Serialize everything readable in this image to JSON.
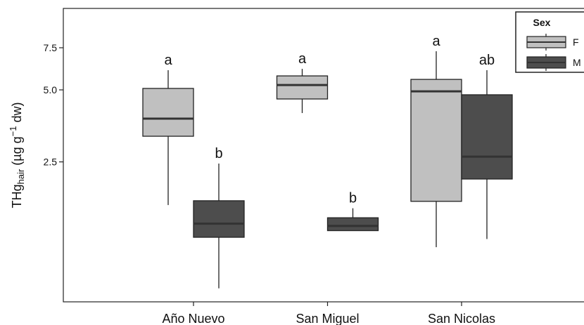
{
  "chart_data": {
    "type": "box",
    "ylabel": {
      "main": "THg",
      "sub": "hair",
      "rest": " (µg g",
      "sup": "−1",
      "end": " dw)"
    },
    "categories": [
      "Año Nuevo",
      "San Miguel",
      "San Nicolas"
    ],
    "log_y": true,
    "ylim": [
      0.65,
      10.95
    ],
    "yticks": [
      2.5,
      {
        "value": 5,
        "label": "5.0"
      },
      7.5
    ],
    "legend": {
      "title": "Sex",
      "position": "top-right"
    },
    "series": [
      {
        "name": "F",
        "color": "#c0c0c0",
        "boxes": [
          {
            "min": 1.65,
            "q1": 3.2,
            "median": 3.79,
            "q3": 5.07,
            "max": 6.04
          },
          {
            "min": 4.0,
            "q1": 4.58,
            "median": 5.24,
            "q3": 5.72,
            "max": 6.12
          },
          {
            "min": 1.1,
            "q1": 1.71,
            "median": 4.93,
            "q3": 5.53,
            "max": 7.25
          }
        ],
        "letters": [
          "a",
          "a",
          "a"
        ]
      },
      {
        "name": "M",
        "color": "#4d4d4d",
        "boxes": [
          {
            "min": 0.74,
            "q1": 1.21,
            "median": 1.38,
            "q3": 1.72,
            "max": 2.46
          },
          {
            "min": 1.29,
            "q1": 1.29,
            "median": 1.35,
            "q3": 1.46,
            "max": 1.6
          },
          {
            "min": 1.19,
            "q1": 2.12,
            "median": 2.63,
            "q3": 4.77,
            "max": 6.04
          }
        ],
        "letters": [
          "b",
          "b",
          "ab"
        ]
      }
    ]
  }
}
